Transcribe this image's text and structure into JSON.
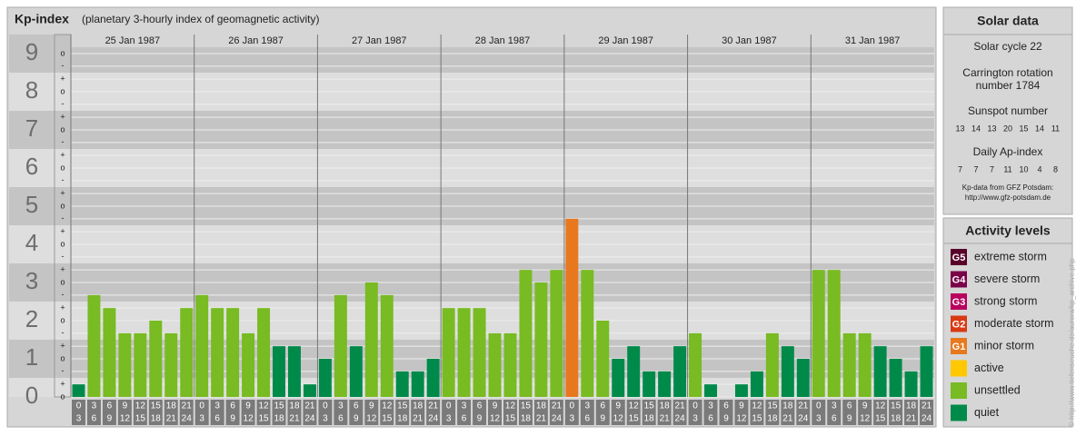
{
  "chart_data": {
    "type": "bar",
    "title": "Kp-index",
    "subtitle": "(planetary 3-hourly index of geomagnetic activity)",
    "days": [
      "25 Jan 1987",
      "26 Jan 1987",
      "27 Jan 1987",
      "28 Jan 1987",
      "29 Jan 1987",
      "30 Jan 1987",
      "31 Jan 1987"
    ],
    "hours": [
      "0",
      "3",
      "6",
      "9",
      "12",
      "15",
      "18",
      "21",
      "24"
    ],
    "values": [
      0.33,
      2.67,
      2.33,
      1.67,
      1.67,
      2.0,
      1.67,
      2.33,
      2.67,
      2.33,
      2.33,
      1.67,
      2.33,
      1.33,
      1.33,
      0.33,
      1.0,
      2.67,
      1.33,
      3.0,
      2.67,
      0.67,
      0.67,
      1.0,
      2.33,
      2.33,
      2.33,
      1.67,
      1.67,
      3.33,
      3.0,
      3.33,
      4.67,
      3.33,
      2.0,
      1.0,
      1.33,
      0.67,
      0.67,
      1.33,
      1.67,
      0.33,
      0,
      0.33,
      0.67,
      1.67,
      1.33,
      1.0,
      3.33,
      3.33,
      1.67,
      1.67,
      1.33,
      1.0,
      0.67,
      1.33
    ],
    "colors": [
      "#008a4a",
      "#78bb22",
      "#78bb22",
      "#78bb22",
      "#78bb22",
      "#78bb22",
      "#78bb22",
      "#78bb22",
      "#78bb22",
      "#78bb22",
      "#78bb22",
      "#78bb22",
      "#78bb22",
      "#008a4a",
      "#008a4a",
      "#008a4a",
      "#008a4a",
      "#78bb22",
      "#008a4a",
      "#78bb22",
      "#78bb22",
      "#008a4a",
      "#008a4a",
      "#008a4a",
      "#78bb22",
      "#78bb22",
      "#78bb22",
      "#78bb22",
      "#78bb22",
      "#78bb22",
      "#78bb22",
      "#78bb22",
      "#e8781e",
      "#78bb22",
      "#78bb22",
      "#008a4a",
      "#008a4a",
      "#008a4a",
      "#008a4a",
      "#008a4a",
      "#78bb22",
      "#008a4a",
      "#008a4a",
      "#008a4a",
      "#008a4a",
      "#78bb22",
      "#008a4a",
      "#008a4a",
      "#78bb22",
      "#78bb22",
      "#78bb22",
      "#78bb22",
      "#008a4a",
      "#008a4a",
      "#008a4a",
      "#008a4a"
    ],
    "ylim": [
      0,
      9.5
    ],
    "yticks": [
      0,
      1,
      2,
      3,
      4,
      5,
      6,
      7,
      8,
      9
    ],
    "minor_ticks": [
      {
        "value": 0,
        "label": "o"
      },
      {
        "value": 0.33,
        "label": "+"
      },
      {
        "value": 0.67,
        "label": "-"
      },
      {
        "value": 1,
        "label": "o"
      },
      {
        "value": 1.33,
        "label": "+"
      },
      {
        "value": 1.67,
        "label": "-"
      },
      {
        "value": 2,
        "label": "o"
      },
      {
        "value": 2.33,
        "label": "+"
      },
      {
        "value": 2.67,
        "label": "-"
      },
      {
        "value": 3,
        "label": "o"
      },
      {
        "value": 3.33,
        "label": "+"
      },
      {
        "value": 3.67,
        "label": "-"
      },
      {
        "value": 4,
        "label": "o"
      },
      {
        "value": 4.33,
        "label": "+"
      },
      {
        "value": 4.67,
        "label": "-"
      },
      {
        "value": 5,
        "label": "o"
      },
      {
        "value": 5.33,
        "label": "+"
      },
      {
        "value": 5.67,
        "label": "-"
      },
      {
        "value": 6,
        "label": "o"
      },
      {
        "value": 6.33,
        "label": "+"
      },
      {
        "value": 6.67,
        "label": "-"
      },
      {
        "value": 7,
        "label": "o"
      },
      {
        "value": 7.33,
        "label": "+"
      },
      {
        "value": 7.67,
        "label": "-"
      },
      {
        "value": 8,
        "label": "o"
      },
      {
        "value": 8.33,
        "label": "+"
      },
      {
        "value": 8.67,
        "label": "-"
      },
      {
        "value": 9,
        "label": "o"
      }
    ]
  },
  "solar": {
    "title": "Solar data",
    "cycle": "Solar cycle 22",
    "rotation": [
      "Carrington rotation",
      "number 1784"
    ],
    "sunspot_title": "Sunspot number",
    "sunspot": [
      13,
      14,
      13,
      20,
      15,
      14,
      11
    ],
    "ap_title": "Daily Ap-index",
    "ap": [
      7,
      7,
      7,
      11,
      10,
      4,
      8
    ],
    "source": [
      "Kp-data from GFZ Potsdam:",
      "http://www.gfz-potsdam.de"
    ]
  },
  "legend": {
    "title": "Activity levels",
    "items": [
      {
        "badge": "G5",
        "label": "extreme storm",
        "color": "#58002a"
      },
      {
        "badge": "G4",
        "label": "severe storm",
        "color": "#7a0048"
      },
      {
        "badge": "G3",
        "label": "strong storm",
        "color": "#b8005e"
      },
      {
        "badge": "G2",
        "label": "moderate storm",
        "color": "#d83a14"
      },
      {
        "badge": "G1",
        "label": "minor storm",
        "color": "#e8781e"
      },
      {
        "label": "active",
        "color": "#ffc800"
      },
      {
        "label": "unsettled",
        "color": "#78bb22"
      },
      {
        "label": "quiet",
        "color": "#008a4a"
      }
    ]
  },
  "credit": "© http://www.tiefenseuche.de/aurora/kp_archive.php"
}
